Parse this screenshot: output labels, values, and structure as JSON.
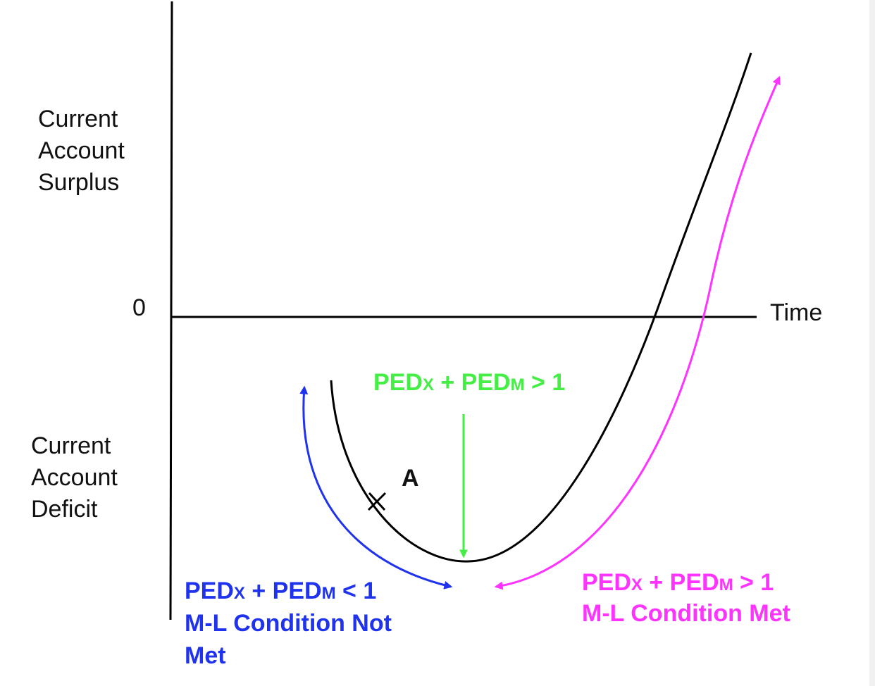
{
  "axis": {
    "y_surplus_lines": [
      "Current",
      "Account",
      "Surplus"
    ],
    "y_deficit_lines": [
      "Current",
      "Account",
      "Deficit"
    ],
    "zero_label": "0",
    "x_label": "Time"
  },
  "point": {
    "label": "A"
  },
  "green_label": {
    "a": "PED",
    "a_sub": "X",
    "mid": " + PED",
    "b_sub": "M",
    "rest": " > 1"
  },
  "blue_label": {
    "a": "PED",
    "a_sub": "X",
    "mid": " + PED",
    "b_sub": "M",
    "rest": " < 1",
    "line2": "M-L Condition Not",
    "line3": "Met"
  },
  "magenta_label": {
    "a": "PED",
    "a_sub": "X",
    "mid": " + PED",
    "b_sub": "M",
    "rest": " > 1",
    "line2": "M-L Condition Met"
  },
  "colors": {
    "curve": "#000000",
    "green": "#44ee44",
    "blue": "#1f33ee",
    "magenta": "#ff33ff"
  }
}
